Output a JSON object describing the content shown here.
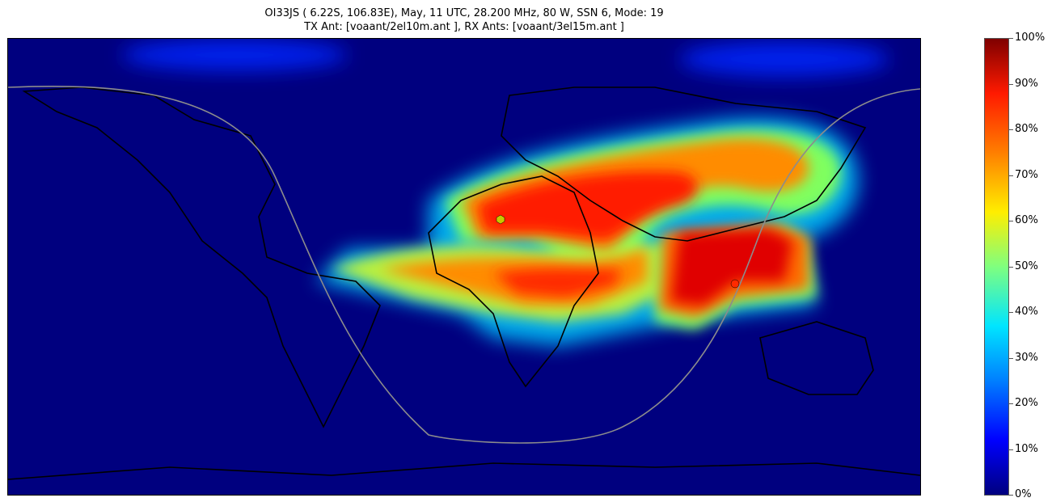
{
  "title": {
    "line1": "OI33JS ( 6.22S, 106.83E), May, 11 UTC, 28.200 MHz, 80 W, SSN 6, Mode: 19",
    "line2": "TX Ant: [voaant/2el10m.ant    ], RX Ants: [voaant/3el15m.ant    ]"
  },
  "colorbar": {
    "labels": [
      "100%",
      "90%",
      "80%",
      "70%",
      "60%",
      "50%",
      "40%",
      "30%",
      "20%",
      "10%",
      "0%"
    ]
  },
  "map": {
    "background_color": "#00007f",
    "transmitter_marker_color": "#ff2a00",
    "receiver_marker_color": "#c8c800",
    "terminator_color": "#8c8c8c"
  }
}
